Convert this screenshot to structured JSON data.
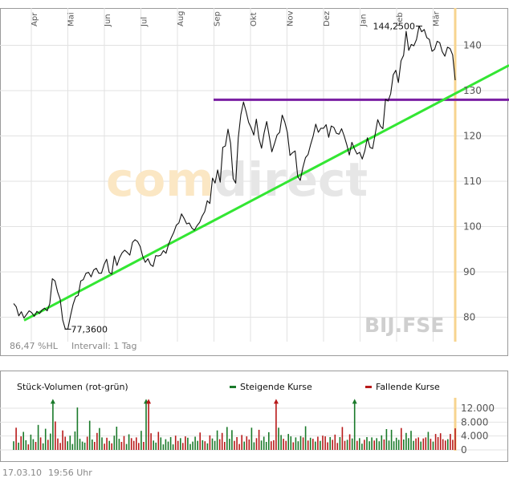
{
  "chart_data": [
    {
      "type": "line",
      "symbol": "BIJ.FSE",
      "watermark": [
        "com",
        "direct"
      ],
      "x_labels": [
        "Apr",
        "Mai",
        "Jun",
        "Jul",
        "Aug",
        "Sep",
        "Okt",
        "Nov",
        "Dez",
        "Jan",
        "Feb",
        "Mär"
      ],
      "y_ticks": [
        80,
        90,
        100,
        110,
        120,
        130,
        140
      ],
      "ylim": [
        74.6,
        147
      ],
      "grid": true,
      "series": [
        {
          "values": [
            83,
            82.3,
            80.3,
            81.2,
            79.8,
            80.6,
            81.4,
            81,
            80.2,
            81.3,
            80.8,
            81.6,
            82,
            81.4,
            83,
            88.5,
            88,
            85.6,
            84,
            79.4,
            77.4,
            77.36,
            80.3,
            82.8,
            84.5,
            84.8,
            88,
            88.3,
            89.7,
            89.9,
            88.9,
            90.4,
            90.8,
            89.7,
            89.7,
            91.6,
            92.8,
            89.9,
            89.5,
            93.5,
            91.4,
            93.1,
            94.2,
            94.8,
            94.3,
            93.7,
            96.5,
            97.1,
            96.7,
            95.6,
            93.4,
            92.1,
            92.9,
            91.6,
            91.2,
            93.6,
            93.5,
            93.7,
            94.7,
            94.1,
            96.1,
            97.5,
            98.7,
            100.3,
            100.8,
            102.8,
            101.8,
            100.6,
            100.8,
            99.7,
            99.2,
            100.2,
            100.9,
            102.3,
            103.3,
            105.7,
            105.1,
            110.7,
            109.6,
            112.5,
            109.8,
            117.5,
            117.8,
            121.5,
            118.4,
            110.6,
            109.6,
            119.6,
            124.7,
            127.5,
            125.4,
            123,
            121.8,
            120.2,
            123.7,
            119.4,
            117.3,
            120.7,
            123.2,
            119.9,
            116.5,
            118.3,
            120.2,
            120.8,
            124.6,
            123.1,
            120.8,
            115.7,
            116.3,
            116.7,
            111.1,
            110.2,
            113,
            115.2,
            115.9,
            118.1,
            120,
            122.6,
            120.8,
            121.7,
            121.7,
            122.5,
            119.7,
            122.2,
            121.9,
            120.6,
            120.4,
            121.6,
            120,
            118.1,
            115.8,
            118.6,
            117.1,
            116,
            116.4,
            114.9,
            116.7,
            119.6,
            117.5,
            117.2,
            120.4,
            123.6,
            122.2,
            121.6,
            128.1,
            127.7,
            129.3,
            133.5,
            134.5,
            131.8,
            136.6,
            137.8,
            143.1,
            138.9,
            140.2,
            139.9,
            141.3,
            144.25,
            143,
            143.5,
            141.7,
            141.3,
            138.7,
            139.1,
            140.9,
            140.6,
            138.6,
            137.6,
            139.6,
            139.3,
            137.9,
            132.3
          ],
          "annotations": [
            {
              "label": "77,3600",
              "value": 77.36,
              "kind": "low"
            },
            {
              "label": "144,2500",
              "value": 144.25,
              "kind": "high"
            }
          ]
        }
      ],
      "horizontal_line": {
        "value": 128,
        "color": "#7a1fa2"
      },
      "trend_line": {
        "from": 79.3,
        "to": 135.6,
        "color": "#33e633"
      },
      "footer_left": "86,47 %HL",
      "footer_right": "Intervall: 1 Tag"
    },
    {
      "type": "bar",
      "title": "Stück-Volumen (rot-grün)",
      "legend": [
        {
          "label": "Steigende Kurse",
          "color": "#1a7a2a"
        },
        {
          "label": "Fallende Kurse",
          "color": "#b81a1a"
        }
      ],
      "y_ticks": [
        0,
        4000,
        8000,
        12000
      ],
      "y_tick_labels": [
        "0",
        "4.000",
        "8.000",
        "12.000"
      ],
      "ylim": [
        0,
        15000
      ],
      "values": [
        2500,
        6400,
        2100,
        3900,
        5200,
        2800,
        1600,
        4400,
        3100,
        2300,
        7200,
        3600,
        1900,
        6100,
        2900,
        4700,
        15000,
        8200,
        3300,
        2000,
        5600,
        3800,
        2500,
        4100,
        1700,
        5300,
        12200,
        3200,
        2400,
        2100,
        3800,
        8400,
        3000,
        2300,
        4900,
        6300,
        3600,
        1800,
        3500,
        2600,
        1900,
        4100,
        6700,
        3200,
        2300,
        4000,
        1700,
        4500,
        3400,
        2600,
        3600,
        2000,
        5500,
        2300,
        15000,
        15000,
        4800,
        2700,
        2100,
        5200,
        3600,
        1600,
        3100,
        2400,
        3700,
        1600,
        4100,
        2600,
        3400,
        2000,
        3900,
        3500,
        1700,
        2400,
        3800,
        2600,
        5000,
        2800,
        2500,
        1900,
        4200,
        3300,
        2600,
        5600,
        3100,
        4900,
        2300,
        6600,
        3200,
        5700,
        2600,
        3700,
        1700,
        4300,
        2400,
        3900,
        3000,
        6400,
        2200,
        3400,
        5800,
        2700,
        3800,
        2300,
        5100,
        2500,
        2800,
        15000,
        6400,
        4300,
        3200,
        2600,
        4600,
        3900,
        2200,
        3600,
        2500,
        4000,
        3600,
        6800,
        2700,
        3500,
        3200,
        2400,
        3800,
        2600,
        4100,
        3900,
        2200,
        3700,
        2900,
        4400,
        2000,
        3700,
        6600,
        2600,
        2900,
        4500,
        3300,
        14200,
        2600,
        3400,
        1800,
        2900,
        3700,
        2500,
        3600,
        2700,
        3400,
        2500,
        4200,
        3000,
        6000,
        2700,
        5800,
        2500,
        3500,
        2900,
        6300,
        3000,
        4900,
        3400,
        5500,
        2600,
        3300,
        3600,
        2400,
        3300,
        3600,
        5200,
        3200,
        2400,
        4600,
        3700,
        4800,
        3100,
        2700,
        3100,
        4600,
        2900,
        6200
      ],
      "rising": [
        true,
        false,
        true,
        false,
        true,
        true,
        false,
        true,
        true,
        false,
        true,
        false,
        true,
        true,
        false,
        true,
        true,
        false,
        false,
        false,
        false,
        false,
        true,
        true,
        true,
        true,
        true,
        true,
        true,
        true,
        false,
        true,
        true,
        false,
        false,
        true,
        true,
        false,
        false,
        true,
        false,
        true,
        true,
        true,
        false,
        false,
        true,
        true,
        false,
        false,
        false,
        false,
        true,
        false,
        true,
        false,
        false,
        true,
        true,
        false,
        true,
        true,
        true,
        true,
        true,
        true,
        false,
        false,
        true,
        false,
        false,
        true,
        true,
        true,
        true,
        true,
        false,
        true,
        false,
        true,
        false,
        true,
        true,
        true,
        false,
        false,
        false,
        true,
        true,
        true,
        false,
        false,
        false,
        false,
        true,
        false,
        false,
        true,
        true,
        false,
        false,
        true,
        true,
        true,
        true,
        false,
        false,
        false,
        true,
        true,
        false,
        false,
        true,
        true,
        false,
        true,
        true,
        true,
        false,
        true,
        false,
        true,
        false,
        true,
        false,
        true,
        false,
        false,
        false,
        true,
        false,
        false,
        false,
        true,
        false,
        false,
        true,
        false,
        true,
        true,
        false,
        true,
        true,
        false,
        true,
        true,
        true,
        false,
        true,
        true,
        true,
        false,
        true,
        true,
        true,
        true,
        true,
        true,
        false,
        true,
        true,
        true,
        true,
        true,
        false,
        false,
        true,
        false,
        false,
        true,
        false,
        true,
        false,
        false,
        false,
        false,
        false,
        true,
        false,
        false,
        false
      ]
    }
  ],
  "footer": {
    "date": "17.03.10",
    "time": "19:56 Uhr"
  }
}
